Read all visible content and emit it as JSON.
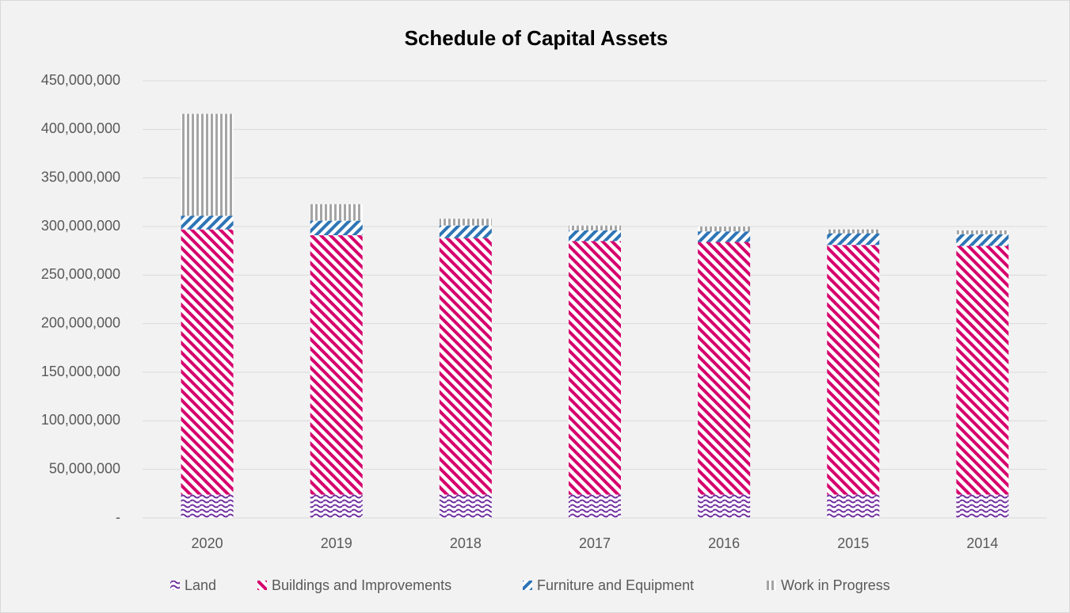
{
  "chart_data": {
    "type": "bar",
    "stacked": true,
    "title": "Schedule of Capital Assets",
    "categories": [
      "2020",
      "2019",
      "2018",
      "2017",
      "2016",
      "2015",
      "2014"
    ],
    "series": [
      {
        "name": "Land",
        "color": "#7030a0",
        "values": [
          24000000,
          24000000,
          24000000,
          24000000,
          24000000,
          24000000,
          24000000
        ]
      },
      {
        "name": "Buildings and Improvements",
        "color": "#d6006d",
        "values": [
          273000000,
          267000000,
          264000000,
          261000000,
          260000000,
          257000000,
          256000000
        ]
      },
      {
        "name": "Furniture and Equipment",
        "color": "#2e75b6",
        "values": [
          14000000,
          15000000,
          13000000,
          11000000,
          11000000,
          12000000,
          12000000
        ]
      },
      {
        "name": "Work in Progress",
        "color": "#a5a5a5",
        "values": [
          105000000,
          17000000,
          7000000,
          5000000,
          5000000,
          4000000,
          4000000
        ]
      }
    ],
    "ylim": [
      0,
      450000000
    ],
    "yticks": [
      {
        "value": 0,
        "label": "-"
      },
      {
        "value": 50000000,
        "label": "50,000,000"
      },
      {
        "value": 100000000,
        "label": "100,000,000"
      },
      {
        "value": 150000000,
        "label": "150,000,000"
      },
      {
        "value": 200000000,
        "label": "200,000,000"
      },
      {
        "value": 250000000,
        "label": "250,000,000"
      },
      {
        "value": 300000000,
        "label": "300,000,000"
      },
      {
        "value": 350000000,
        "label": "350,000,000"
      },
      {
        "value": 400000000,
        "label": "400,000,000"
      },
      {
        "value": 450000000,
        "label": "450,000,000"
      }
    ],
    "grid": true,
    "legend": "bottom"
  }
}
